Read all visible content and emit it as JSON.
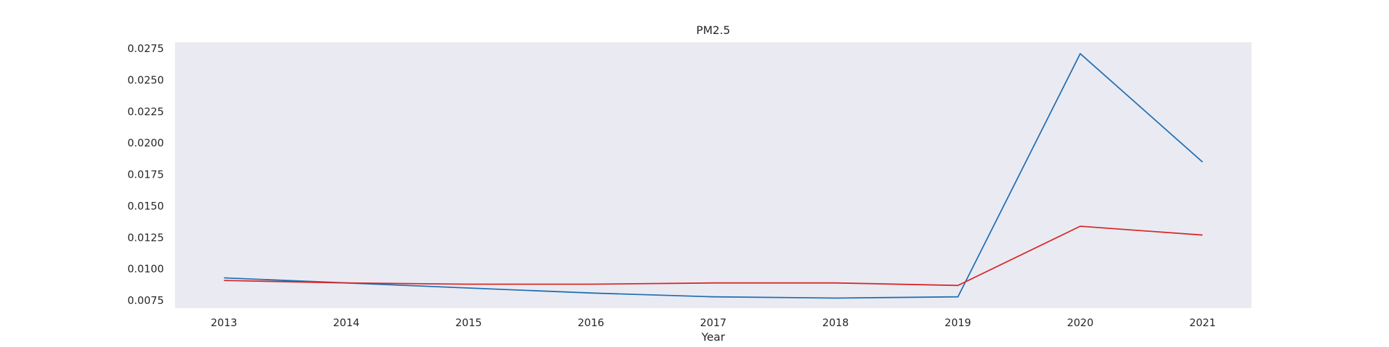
{
  "chart_data": {
    "type": "line",
    "title": "PM2.5",
    "xlabel": "Year",
    "ylabel": "",
    "x": [
      2013,
      2014,
      2015,
      2016,
      2017,
      2018,
      2019,
      2020,
      2021
    ],
    "xlim": [
      2012.6,
      2021.4
    ],
    "ylim": [
      0.0069,
      0.028
    ],
    "yticks": [
      "0.0075",
      "0.0100",
      "0.0125",
      "0.0150",
      "0.0175",
      "0.0200",
      "0.0225",
      "0.0250",
      "0.0275"
    ],
    "grid": false,
    "series": [
      {
        "color": "#1f6fb4",
        "values": [
          0.0093,
          0.0089,
          0.0085,
          0.0081,
          0.0078,
          0.0077,
          0.0078,
          0.0271,
          0.0185
        ]
      },
      {
        "color": "#d62728",
        "values": [
          0.0091,
          0.0089,
          0.0088,
          0.0088,
          0.0089,
          0.0089,
          0.0087,
          0.0134,
          0.0127
        ]
      }
    ],
    "plot_background": "#eaeaf2"
  }
}
